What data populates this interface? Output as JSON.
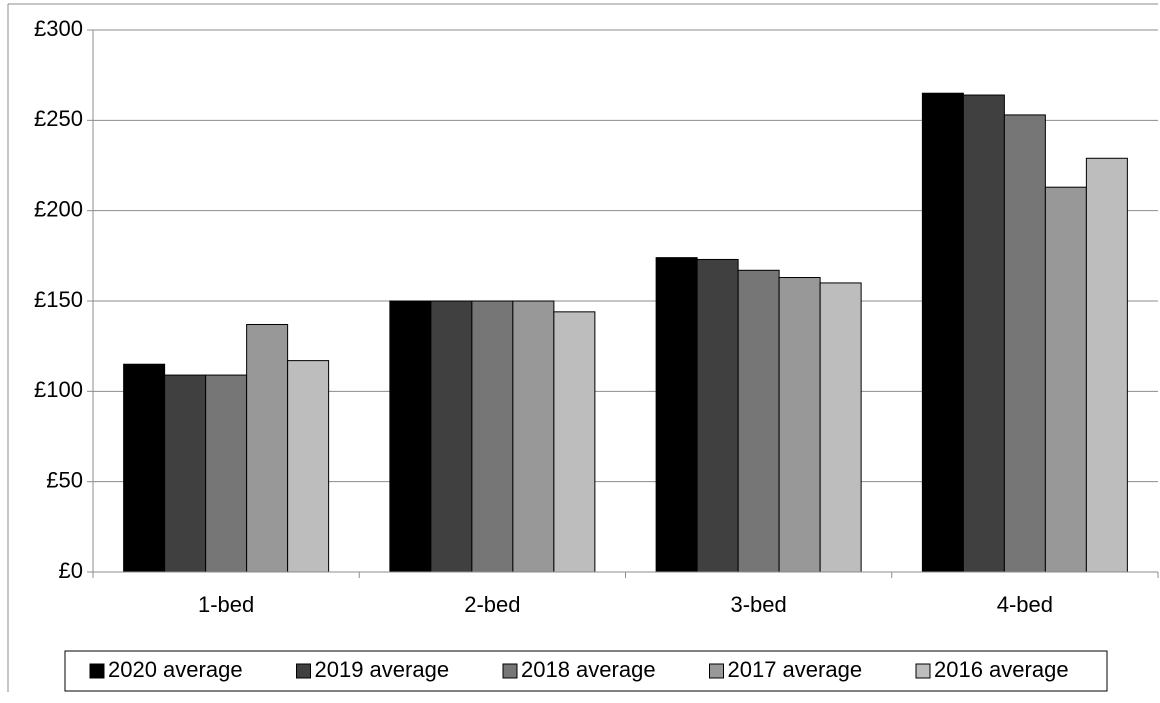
{
  "chart_data": {
    "type": "bar",
    "categories": [
      "1-bed",
      "2-bed",
      "3-bed",
      "4-bed"
    ],
    "series": [
      {
        "name": "2020 average",
        "color": "#000000",
        "values": [
          115,
          150,
          174,
          265
        ]
      },
      {
        "name": "2019 average",
        "color": "#404040",
        "values": [
          109,
          150,
          173,
          264
        ]
      },
      {
        "name": "2018 average",
        "color": "#767676",
        "values": [
          109,
          150,
          167,
          253
        ]
      },
      {
        "name": "2017 average",
        "color": "#989898",
        "values": [
          137,
          150,
          163,
          213
        ]
      },
      {
        "name": "2016 average",
        "color": "#bdbdbd",
        "values": [
          117,
          144,
          160,
          229
        ]
      }
    ],
    "y_ticks": [
      "£0",
      "£50",
      "£100",
      "£150",
      "£200",
      "£250",
      "£300"
    ],
    "ylim": [
      0,
      300
    ],
    "grid": true,
    "legend_position": "bottom"
  }
}
